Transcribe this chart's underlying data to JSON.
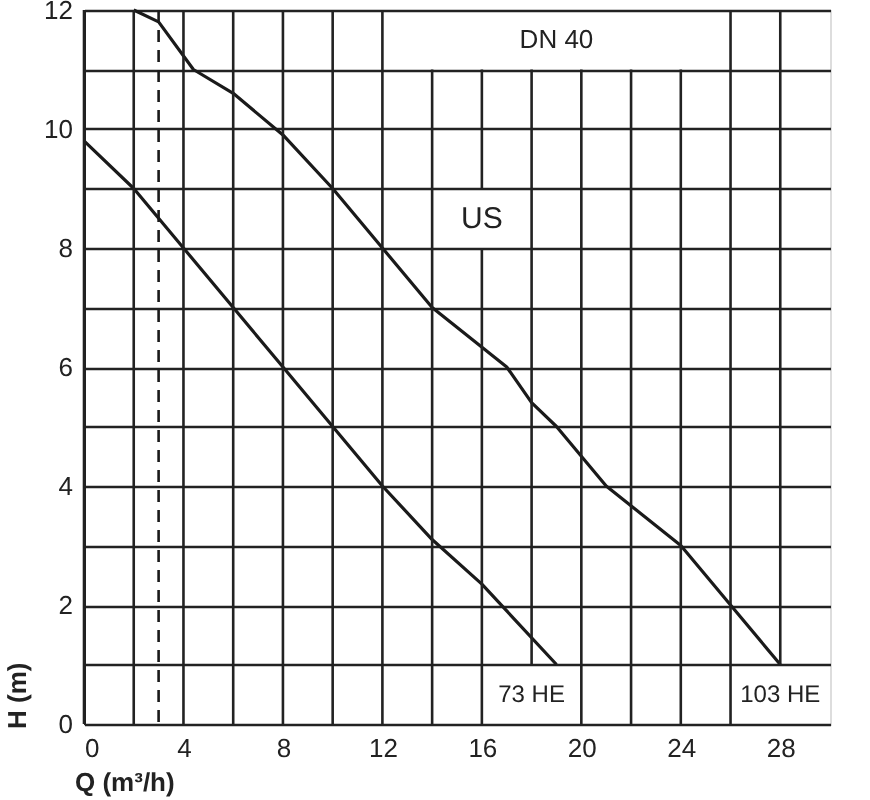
{
  "chart_data": {
    "type": "line",
    "xlabel": "Q (m³/h)",
    "ylabel": "H (m)",
    "xlim": [
      0,
      30
    ],
    "ylim": [
      0,
      12
    ],
    "xticks": [
      0,
      {
        "value": 2,
        "label": null
      },
      4,
      {
        "value": 6,
        "label": null
      },
      8,
      {
        "value": 10,
        "label": null
      },
      12,
      {
        "value": 14,
        "label": null
      },
      16,
      {
        "value": 18,
        "label": null
      },
      20,
      {
        "value": 22,
        "label": null
      },
      24,
      {
        "value": 26,
        "label": null
      },
      28
    ],
    "yticks": [
      0,
      {
        "value": 1,
        "label": null
      },
      2,
      {
        "value": 3,
        "label": null
      },
      4,
      {
        "value": 5,
        "label": null
      },
      6,
      {
        "value": 7,
        "label": null
      },
      8,
      {
        "value": 9,
        "label": null
      },
      10,
      {
        "value": 11,
        "label": null
      },
      12
    ],
    "grid": true,
    "marker": "none",
    "line_style": "solid",
    "series": [
      {
        "name": "73 HE",
        "color": "#1a1a1a",
        "x": [
          0,
          2,
          4,
          6,
          8,
          10,
          12,
          14,
          16,
          19
        ],
        "values": [
          9.8,
          9,
          8,
          7,
          6,
          5,
          4,
          3.1,
          2.35,
          1
        ]
      },
      {
        "name": "103 HE",
        "color": "#1a1a1a",
        "x": [
          2,
          3,
          4.4,
          6,
          8,
          10,
          12,
          14,
          17,
          18,
          19,
          21,
          24,
          26,
          28
        ],
        "values": [
          12,
          11.8,
          11,
          10.6,
          9.9,
          9,
          8,
          7,
          6,
          5.4,
          5,
          4,
          3,
          2,
          1
        ]
      }
    ],
    "ref_lines": [
      {
        "axis": "x",
        "value": 3,
        "color": "#1a1a1a",
        "line_style": "dashed"
      }
    ],
    "annotations": [
      "DN 40",
      "US"
    ]
  }
}
